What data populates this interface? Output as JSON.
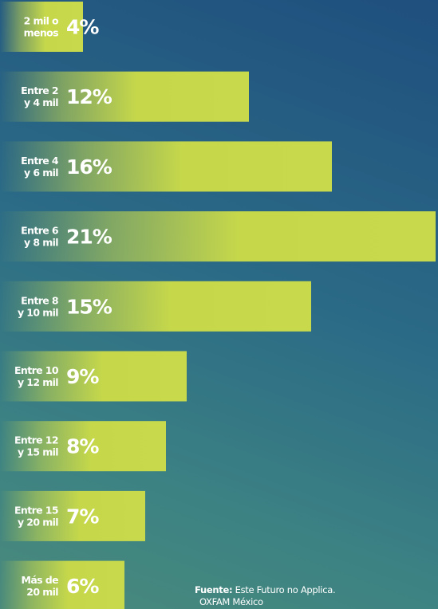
{
  "chart_data": {
    "type": "bar",
    "orientation": "horizontal",
    "categories": [
      [
        "2 mil o",
        "menos"
      ],
      [
        "Entre 2",
        "y 4 mil"
      ],
      [
        "Entre 4",
        "y 6 mil"
      ],
      [
        "Entre 6",
        "y 8 mil"
      ],
      [
        "Entre 8",
        "y 10 mil"
      ],
      [
        "Entre 10",
        "y 12 mil"
      ],
      [
        "Entre 12",
        "y 15 mil"
      ],
      [
        "Entre 15",
        "y 20 mil"
      ],
      [
        "Más de",
        "20 mil"
      ]
    ],
    "values": [
      4,
      12,
      16,
      21,
      15,
      9,
      8,
      7,
      6
    ],
    "value_labels": [
      "4%",
      "12%",
      "16%",
      "21%",
      "15%",
      "9%",
      "8%",
      "7%",
      "6%"
    ],
    "xlim": [
      0,
      21
    ],
    "bar_color": "#c6d84a",
    "grid": false,
    "legend": "none"
  },
  "source": {
    "label": "Fuente:",
    "text": "Este Futuro no Applica.",
    "text2": "OXFAM México"
  }
}
